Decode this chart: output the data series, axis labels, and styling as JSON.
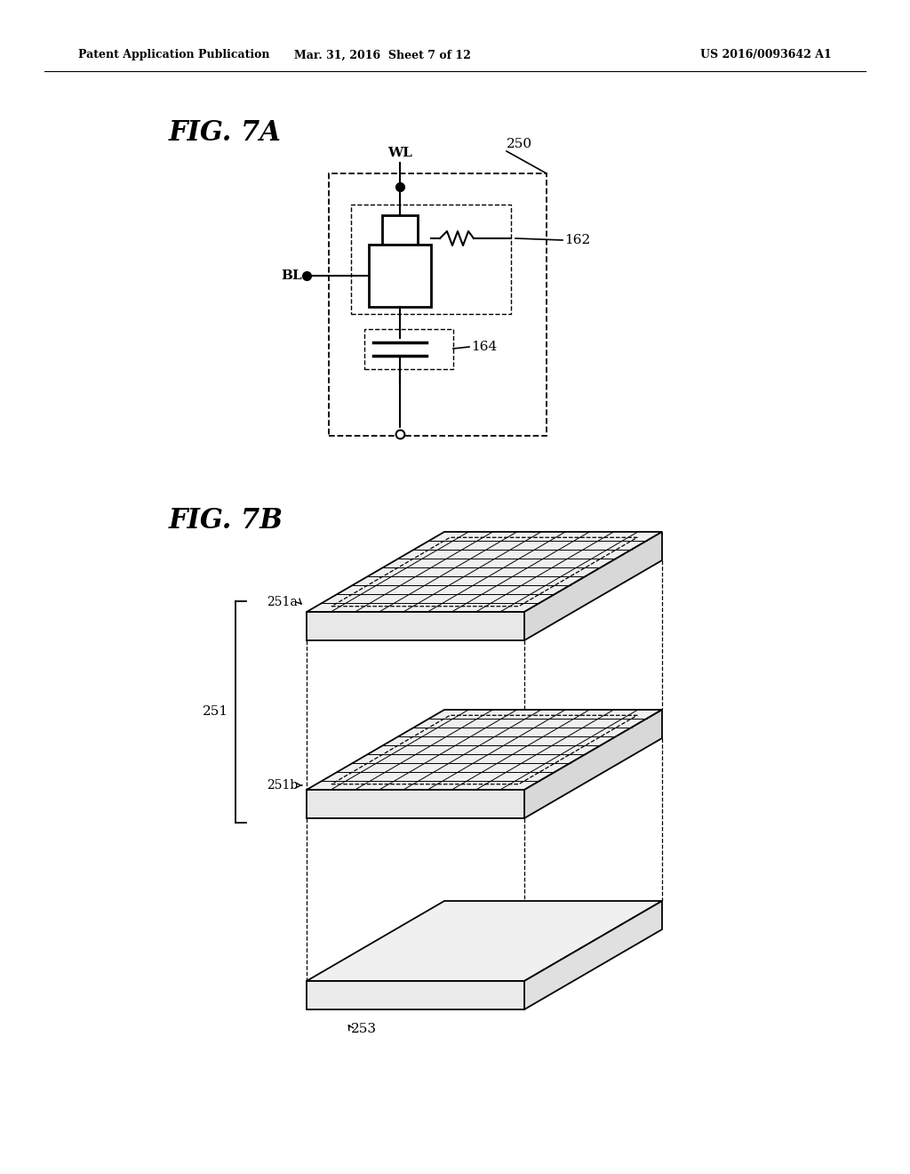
{
  "bg_color": "#ffffff",
  "header_left": "Patent Application Publication",
  "header_mid": "Mar. 31, 2016  Sheet 7 of 12",
  "header_right": "US 2016/0093642 A1",
  "fig7a_label": "FIG. 7A",
  "fig7b_label": "FIG. 7B",
  "label_250": "250",
  "label_WL": "WL",
  "label_BL": "BL",
  "label_162": "162",
  "label_164": "164",
  "label_251": "251",
  "label_251a": "251a",
  "label_251b": "251b",
  "label_253": "253"
}
